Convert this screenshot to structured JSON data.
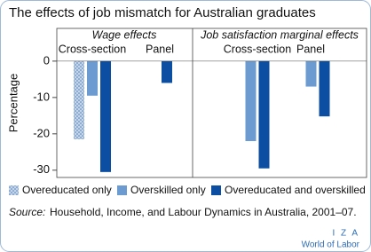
{
  "chart_data": {
    "type": "bar",
    "title": "The effects of job mismatch for Australian graduates",
    "ylabel": "Percentage",
    "groups": [
      {
        "name": "Wage effects",
        "categories": [
          "Cross-section",
          "Panel"
        ]
      },
      {
        "name": "Job satisfaction marginal effects",
        "categories": [
          "Cross-section",
          "Panel"
        ]
      }
    ],
    "series": [
      {
        "name": "Overeducated only",
        "color": "#c5d5ea",
        "pattern": "dots",
        "values": [
          -21.5,
          null,
          null,
          null
        ]
      },
      {
        "name": "Overskilled only",
        "color": "#6c9bd2",
        "values": [
          -9.5,
          null,
          -22,
          -7
        ]
      },
      {
        "name": "Overeducated and overskilled",
        "color": "#0b4ea2",
        "values": [
          -30.5,
          -6,
          -29.5,
          -15.2
        ]
      }
    ],
    "ylim": [
      -32,
      9
    ],
    "yticks": [
      0,
      -10,
      -20,
      -30
    ],
    "source_label": "Source:",
    "source_text": "Household, Income, and Labour Dynamics in Australia, 2001–07.",
    "logo": {
      "name": "I Z A",
      "tagline": "World of Labor"
    }
  }
}
